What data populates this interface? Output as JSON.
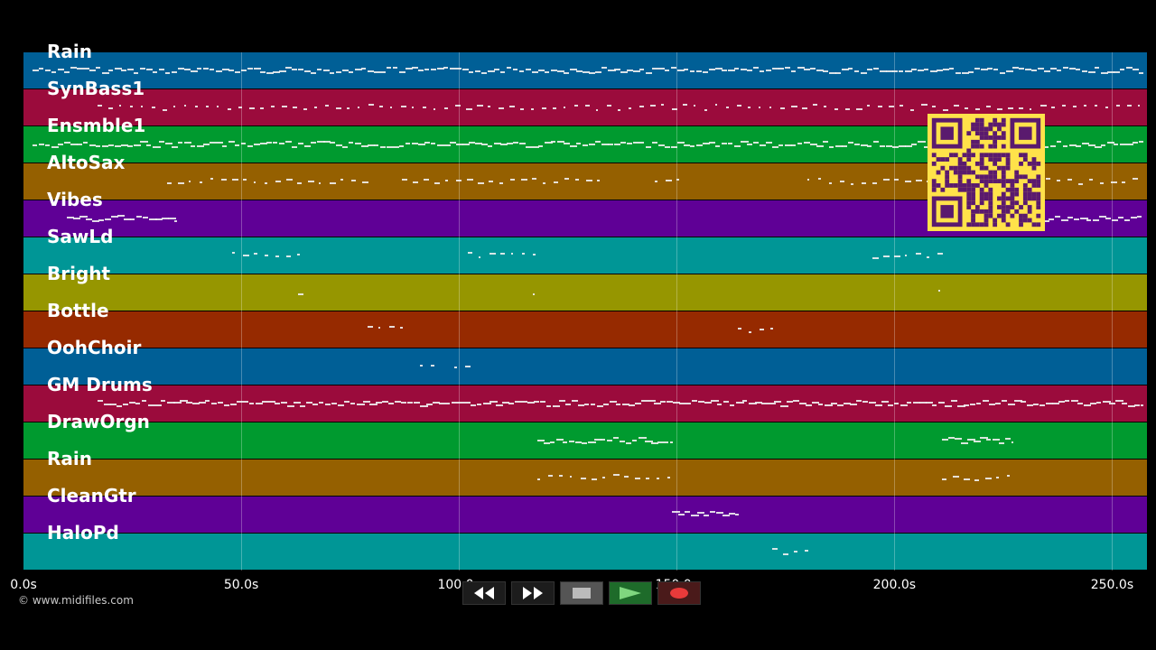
{
  "tracks": [
    {
      "name": "Rain",
      "color": "#005f96"
    },
    {
      "name": "SynBass1",
      "color": "#9b0b3c"
    },
    {
      "name": "Ensmble1",
      "color": "#009a2f"
    },
    {
      "name": "AltoSax",
      "color": "#956000"
    },
    {
      "name": "Vibes",
      "color": "#5f0096"
    },
    {
      "name": "SawLd",
      "color": "#009696"
    },
    {
      "name": "Bright",
      "color": "#969600"
    },
    {
      "name": "Bottle",
      "color": "#962a00"
    },
    {
      "name": "OohChoir",
      "color": "#005f96"
    },
    {
      "name": "GM Drums",
      "color": "#9b0b3c"
    },
    {
      "name": "DrawOrgn",
      "color": "#009a2f"
    },
    {
      "name": "Rain",
      "color": "#956000"
    },
    {
      "name": "CleanGtr",
      "color": "#5f0096"
    },
    {
      "name": "HaloPd",
      "color": "#009696"
    }
  ],
  "time_axis": {
    "max_seconds": 258,
    "ticks": [
      {
        "value": 0,
        "label": "0.0s"
      },
      {
        "value": 50,
        "label": "50.0s"
      },
      {
        "value": 100,
        "label": "100.0s"
      },
      {
        "value": 150,
        "label": "150.0s"
      },
      {
        "value": 200,
        "label": "200.0s"
      },
      {
        "value": 250,
        "label": "250.0s"
      }
    ]
  },
  "note_spans": [
    {
      "track": 0,
      "start": 2,
      "end": 257,
      "density": "dense"
    },
    {
      "track": 1,
      "start": 17,
      "end": 257,
      "density": "sparse"
    },
    {
      "track": 2,
      "start": 2,
      "end": 257,
      "density": "dense"
    },
    {
      "track": 3,
      "start": 33,
      "end": 80,
      "density": "sparse"
    },
    {
      "track": 3,
      "start": 87,
      "end": 134,
      "density": "sparse"
    },
    {
      "track": 3,
      "start": 145,
      "end": 151,
      "density": "sparse"
    },
    {
      "track": 3,
      "start": 180,
      "end": 257,
      "density": "sparse"
    },
    {
      "track": 4,
      "start": 10,
      "end": 35,
      "density": "dense"
    },
    {
      "track": 4,
      "start": 234,
      "end": 257,
      "density": "dense"
    },
    {
      "track": 5,
      "start": 48,
      "end": 64,
      "density": "sparse"
    },
    {
      "track": 5,
      "start": 102,
      "end": 118,
      "density": "sparse"
    },
    {
      "track": 5,
      "start": 195,
      "end": 211,
      "density": "sparse"
    },
    {
      "track": 6,
      "start": 63,
      "end": 64,
      "density": "sparse"
    },
    {
      "track": 6,
      "start": 117,
      "end": 118,
      "density": "sparse"
    },
    {
      "track": 6,
      "start": 210,
      "end": 211,
      "density": "sparse"
    },
    {
      "track": 7,
      "start": 79,
      "end": 87,
      "density": "sparse"
    },
    {
      "track": 7,
      "start": 164,
      "end": 172,
      "density": "sparse"
    },
    {
      "track": 8,
      "start": 91,
      "end": 95,
      "density": "sparse"
    },
    {
      "track": 8,
      "start": 99,
      "end": 103,
      "density": "sparse"
    },
    {
      "track": 9,
      "start": 17,
      "end": 257,
      "density": "dense"
    },
    {
      "track": 10,
      "start": 118,
      "end": 149,
      "density": "dense"
    },
    {
      "track": 10,
      "start": 211,
      "end": 227,
      "density": "dense"
    },
    {
      "track": 11,
      "start": 118,
      "end": 149,
      "density": "sparse"
    },
    {
      "track": 11,
      "start": 211,
      "end": 227,
      "density": "sparse"
    },
    {
      "track": 12,
      "start": 149,
      "end": 164,
      "density": "dense"
    },
    {
      "track": 13,
      "start": 172,
      "end": 180,
      "density": "sparse"
    }
  ],
  "qr": {
    "color": "#ffe24a",
    "dark": "#5a1a6e"
  },
  "copyright": "© www.midifiles.com",
  "transport": [
    {
      "name": "rewind-button",
      "icon": "rewind-icon"
    },
    {
      "name": "fast-forward-button",
      "icon": "fast-forward-icon"
    },
    {
      "name": "stop-button",
      "icon": "stop-icon"
    },
    {
      "name": "play-button",
      "icon": "play-icon"
    },
    {
      "name": "record-button",
      "icon": "record-icon"
    }
  ]
}
